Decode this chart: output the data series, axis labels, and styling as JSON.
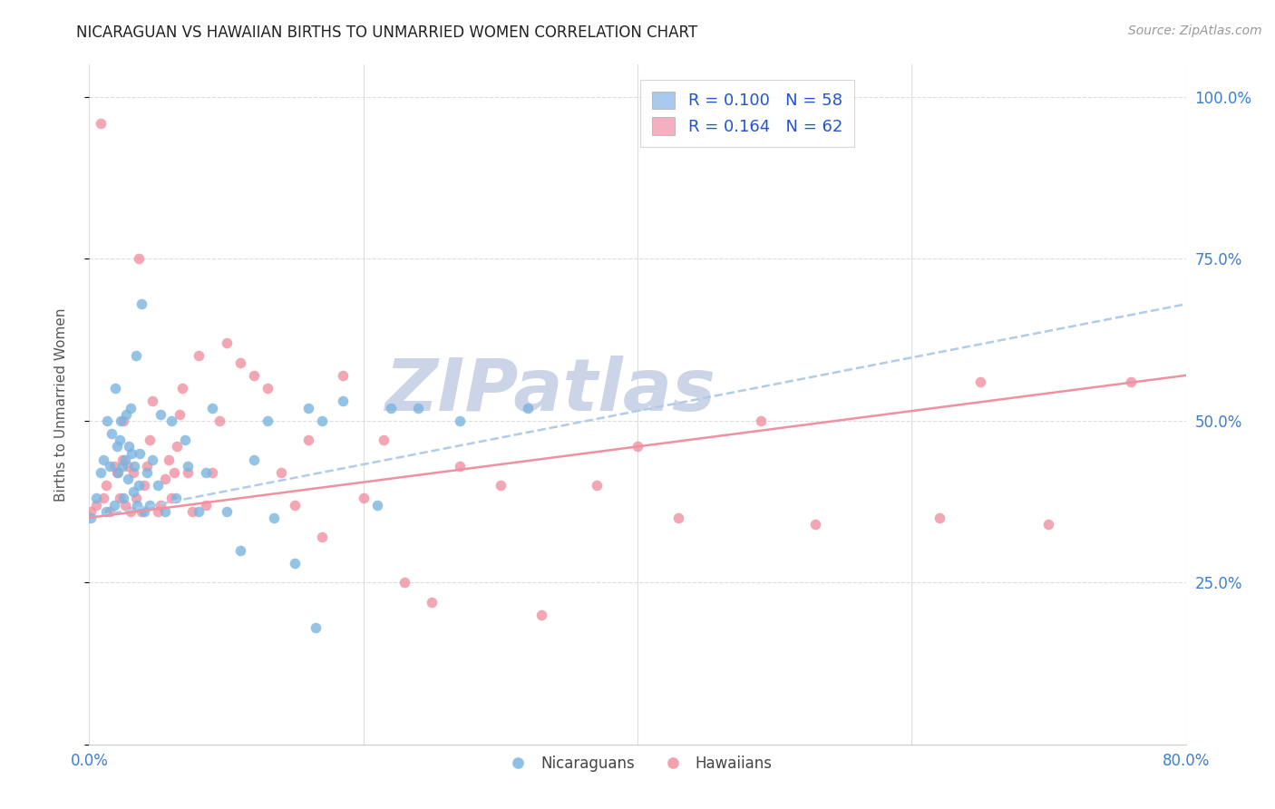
{
  "title": "NICARAGUAN VS HAWAIIAN BIRTHS TO UNMARRIED WOMEN CORRELATION CHART",
  "source": "Source: ZipAtlas.com",
  "ylabel": "Births to Unmarried Women",
  "nicaraguan_color": "#7ab4e0",
  "hawaiian_color": "#f090a0",
  "trendline_nicaraguan_color": "#b0cce8",
  "trendline_hawaiian_color": "#f090a0",
  "watermark_text": "ZIPatlas",
  "watermark_color": "#ccd5e8",
  "background_color": "#ffffff",
  "xlim": [
    0.0,
    0.8
  ],
  "ylim": [
    0.0,
    1.05
  ],
  "ytick_right_labels": [
    "100.0%",
    "75.0%",
    "50.0%",
    "25.0%"
  ],
  "ytick_right_positions": [
    1.0,
    0.75,
    0.5,
    0.25
  ],
  "nicaraguan_x": [
    0.001,
    0.005,
    0.008,
    0.01,
    0.012,
    0.013,
    0.015,
    0.016,
    0.018,
    0.019,
    0.02,
    0.021,
    0.022,
    0.023,
    0.024,
    0.025,
    0.026,
    0.027,
    0.028,
    0.029,
    0.03,
    0.031,
    0.032,
    0.033,
    0.034,
    0.035,
    0.036,
    0.037,
    0.038,
    0.04,
    0.042,
    0.044,
    0.046,
    0.05,
    0.052,
    0.055,
    0.06,
    0.063,
    0.07,
    0.072,
    0.08,
    0.085,
    0.09,
    0.1,
    0.11,
    0.12,
    0.13,
    0.135,
    0.15,
    0.16,
    0.165,
    0.17,
    0.185,
    0.21,
    0.22,
    0.24,
    0.27,
    0.32
  ],
  "nicaraguan_y": [
    0.35,
    0.38,
    0.42,
    0.44,
    0.36,
    0.5,
    0.43,
    0.48,
    0.37,
    0.55,
    0.46,
    0.42,
    0.47,
    0.5,
    0.43,
    0.38,
    0.44,
    0.51,
    0.41,
    0.46,
    0.52,
    0.45,
    0.39,
    0.43,
    0.6,
    0.37,
    0.4,
    0.45,
    0.68,
    0.36,
    0.42,
    0.37,
    0.44,
    0.4,
    0.51,
    0.36,
    0.5,
    0.38,
    0.47,
    0.43,
    0.36,
    0.42,
    0.52,
    0.36,
    0.3,
    0.44,
    0.5,
    0.35,
    0.28,
    0.52,
    0.18,
    0.5,
    0.53,
    0.37,
    0.52,
    0.52,
    0.5,
    0.52
  ],
  "hawaiian_x": [
    0.001,
    0.005,
    0.008,
    0.01,
    0.012,
    0.015,
    0.018,
    0.02,
    0.022,
    0.024,
    0.025,
    0.026,
    0.028,
    0.03,
    0.032,
    0.034,
    0.036,
    0.038,
    0.04,
    0.042,
    0.044,
    0.046,
    0.05,
    0.052,
    0.055,
    0.058,
    0.06,
    0.062,
    0.064,
    0.066,
    0.068,
    0.072,
    0.075,
    0.08,
    0.085,
    0.09,
    0.095,
    0.1,
    0.11,
    0.12,
    0.13,
    0.14,
    0.15,
    0.16,
    0.17,
    0.185,
    0.2,
    0.215,
    0.23,
    0.25,
    0.27,
    0.3,
    0.33,
    0.37,
    0.4,
    0.43,
    0.49,
    0.53,
    0.62,
    0.65,
    0.7,
    0.76
  ],
  "hawaiian_y": [
    0.36,
    0.37,
    0.96,
    0.38,
    0.4,
    0.36,
    0.43,
    0.42,
    0.38,
    0.44,
    0.5,
    0.37,
    0.43,
    0.36,
    0.42,
    0.38,
    0.75,
    0.36,
    0.4,
    0.43,
    0.47,
    0.53,
    0.36,
    0.37,
    0.41,
    0.44,
    0.38,
    0.42,
    0.46,
    0.51,
    0.55,
    0.42,
    0.36,
    0.6,
    0.37,
    0.42,
    0.5,
    0.62,
    0.59,
    0.57,
    0.55,
    0.42,
    0.37,
    0.47,
    0.32,
    0.57,
    0.38,
    0.47,
    0.25,
    0.22,
    0.43,
    0.4,
    0.2,
    0.4,
    0.46,
    0.35,
    0.5,
    0.34,
    0.35,
    0.56,
    0.34,
    0.56
  ],
  "trendline_nic_start": 0.35,
  "trendline_nic_end": 0.68,
  "trendline_haw_start": 0.35,
  "trendline_haw_end": 0.57
}
